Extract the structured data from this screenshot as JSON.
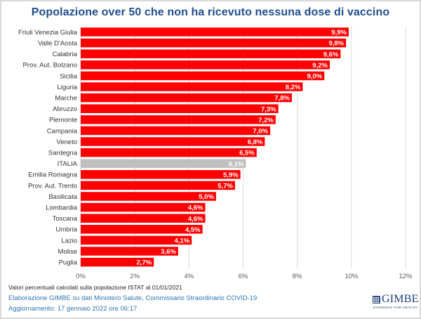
{
  "chart_data": {
    "type": "bar",
    "orientation": "horizontal",
    "title": "Popolazione over 50 che non ha ricevuto nessuna dose di vaccino",
    "categories": [
      "Friuli Venezia Giulia",
      "Valle D'Aosta",
      "Calabria",
      "Prov. Aut. Bolzano",
      "Sicilia",
      "Liguria",
      "Marche",
      "Abruzzo",
      "Piemonte",
      "Campania",
      "Veneto",
      "Sardegna",
      "ITALIA",
      "Emilia Romagna",
      "Prov. Aut. Trento",
      "Basilicata",
      "Lombardia",
      "Toscana",
      "Umbria",
      "Lazio",
      "Molise",
      "Puglia"
    ],
    "values": [
      9.9,
      9.8,
      9.6,
      9.2,
      9.0,
      8.2,
      7.8,
      7.3,
      7.2,
      7.0,
      6.8,
      6.5,
      6.1,
      5.9,
      5.7,
      5.0,
      4.6,
      4.6,
      4.5,
      4.1,
      3.6,
      2.7
    ],
    "value_labels": [
      "9,9%",
      "9,8%",
      "9,6%",
      "9,2%",
      "9,0%",
      "8,2%",
      "7,8%",
      "7,3%",
      "7,2%",
      "7,0%",
      "6,8%",
      "6,5%",
      "6,1%",
      "5,9%",
      "5,7%",
      "5,0%",
      "4,6%",
      "4,6%",
      "4,5%",
      "4,1%",
      "3,6%",
      "2,7%"
    ],
    "highlight_category": "ITALIA",
    "colors": {
      "bar": "#ff0000",
      "highlight": "#bfbfbf",
      "grid": "#d9d9d9",
      "title": "#1f4e8c"
    },
    "xlabel": "",
    "ylabel": "",
    "xlim": [
      0,
      12
    ],
    "x_ticks": [
      0,
      2,
      4,
      6,
      8,
      10,
      12
    ],
    "x_tick_labels": [
      "0%",
      "2%",
      "4%",
      "6%",
      "8%",
      "10%",
      "12%"
    ],
    "grid": true,
    "legend": "none"
  },
  "footer": {
    "note": "Valori percentuali calcolati sulla popolazione ISTAT al 01/01/2021",
    "source": "Elaborazione GIMBE su dati Ministero Salute, Commissario Straordinario COVID-19",
    "updated": "Aggiornamento: 17 gennaio 2022 ore 06:17"
  },
  "logo": {
    "name": "GIMBE",
    "tagline": "EVIDENCE FOR HEALTH"
  }
}
